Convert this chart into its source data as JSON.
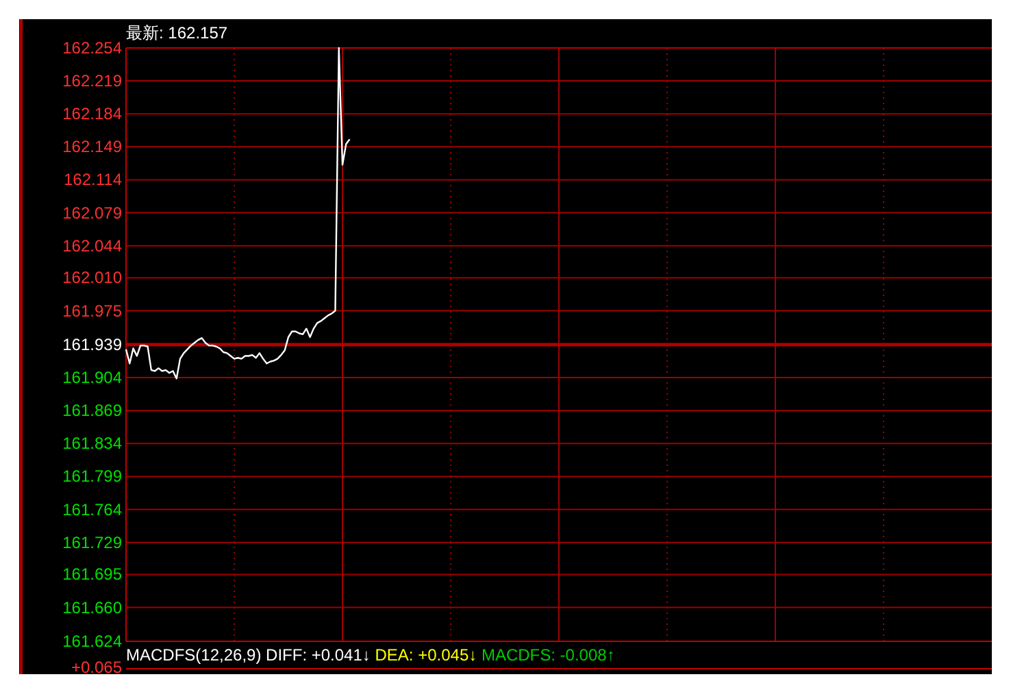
{
  "chart_data": {
    "type": "line",
    "title": "最新: 162.157",
    "categories": [
      null,
      null,
      null,
      null,
      null,
      null,
      null,
      null,
      null,
      null,
      null,
      null,
      null,
      null,
      null,
      null,
      null,
      null,
      null,
      null,
      null,
      null,
      null,
      null,
      null,
      null,
      null,
      null,
      null,
      null,
      null,
      null,
      null,
      null,
      null,
      null,
      null,
      null,
      null,
      null,
      null,
      null,
      null,
      null,
      null,
      null,
      null,
      null,
      null,
      null,
      null,
      null,
      null,
      null,
      null,
      null,
      null,
      null,
      null,
      null,
      null,
      null,
      null,
      null,
      null,
      null,
      null,
      null,
      null,
      null,
      null,
      null,
      null,
      null,
      null,
      null,
      null,
      null,
      null,
      null,
      null,
      null,
      null,
      null,
      null,
      null,
      null,
      null,
      null,
      null,
      null,
      null,
      null,
      null,
      null,
      null,
      null,
      null,
      null,
      null,
      null,
      null,
      null,
      null,
      null,
      null,
      null,
      null,
      null,
      null,
      null,
      null,
      null,
      null,
      null,
      null,
      null,
      null,
      null,
      null,
      null,
      null,
      null,
      null,
      null,
      null,
      null,
      null,
      null,
      null,
      null,
      null,
      null,
      null,
      null,
      null,
      null,
      null,
      null,
      null,
      null,
      null,
      null,
      null,
      null,
      null,
      null,
      null,
      null,
      null,
      null,
      null,
      null,
      null,
      null,
      null,
      null,
      null,
      null,
      null,
      null,
      null,
      null,
      null,
      null,
      null,
      null,
      null,
      null,
      null,
      null,
      null,
      null,
      null,
      null,
      null,
      null,
      null,
      null,
      null,
      null,
      null,
      null,
      null,
      null,
      null,
      null,
      null,
      null,
      null,
      null,
      null,
      null,
      null,
      null,
      null,
      null,
      null,
      null,
      null,
      null,
      null,
      null,
      null,
      null,
      null,
      null,
      null,
      null,
      null,
      null,
      null,
      null,
      null,
      null,
      null,
      null,
      null,
      null,
      null,
      null,
      null,
      null,
      null,
      null,
      null,
      null,
      null,
      null,
      null,
      null,
      null,
      null,
      null,
      null,
      null,
      null,
      null,
      null,
      null,
      null
    ],
    "series": [
      {
        "color": "#ffffff",
        "values": [
          161.934,
          161.919,
          161.935,
          161.927,
          161.938,
          161.938,
          161.937,
          161.912,
          161.911,
          161.914,
          161.911,
          161.912,
          161.909,
          161.911,
          161.903,
          161.924,
          161.93,
          161.934,
          161.938,
          161.941,
          161.944,
          161.946,
          161.941,
          161.938,
          161.938,
          161.937,
          161.935,
          161.931,
          161.93,
          161.927,
          161.924,
          161.925,
          161.924,
          161.927,
          161.927,
          161.928,
          161.925,
          161.93,
          161.924,
          161.919,
          161.921,
          161.922,
          161.924,
          161.928,
          161.933,
          161.947,
          161.953,
          161.953,
          161.951,
          161.95,
          161.956,
          161.947,
          161.956,
          161.962,
          161.964,
          161.967,
          161.97,
          161.972,
          161.975,
          162.254,
          162.13,
          162.152,
          162.157,
          null,
          null,
          null,
          null,
          null,
          null,
          null,
          null,
          null,
          null,
          null,
          null,
          null,
          null,
          null,
          null,
          null,
          null,
          null,
          null,
          null,
          null,
          null,
          null,
          null,
          null,
          null,
          null,
          null,
          null,
          null,
          null,
          null,
          null,
          null,
          null,
          null,
          null,
          null,
          null,
          null,
          null,
          null,
          null,
          null,
          null,
          null,
          null,
          null,
          null,
          null,
          null,
          null,
          null,
          null,
          null,
          null,
          null,
          null,
          null,
          null,
          null,
          null,
          null,
          null,
          null,
          null,
          null,
          null,
          null,
          null,
          null,
          null,
          null,
          null,
          null,
          null,
          null,
          null,
          null,
          null,
          null,
          null,
          null,
          null,
          null,
          null,
          null,
          null,
          null,
          null,
          null,
          null,
          null,
          null,
          null,
          null,
          null,
          null,
          null,
          null,
          null,
          null,
          null,
          null,
          null,
          null,
          null,
          null,
          null,
          null,
          null,
          null,
          null,
          null,
          null,
          null,
          null,
          null,
          null,
          null,
          null,
          null,
          null,
          null,
          null,
          null,
          null,
          null,
          null,
          null,
          null,
          null,
          null,
          null,
          null,
          null,
          null,
          null,
          null,
          null,
          null,
          null,
          null,
          null,
          null,
          null,
          null,
          null,
          null,
          null,
          null,
          null,
          null,
          null,
          null,
          null,
          null,
          null,
          null,
          null,
          null,
          null,
          null,
          null,
          null,
          null,
          null,
          null,
          null,
          null,
          null,
          null,
          null,
          null,
          null,
          null,
          null
        ]
      }
    ],
    "ylim": [
      161.624,
      162.254
    ],
    "yticks": [
      162.254,
      162.219,
      162.184,
      162.149,
      162.114,
      162.079,
      162.044,
      {
        "value": 162.01,
        "label": "162.010"
      },
      {
        "value": 161.975,
        "label": "161.975"
      },
      161.939,
      161.904,
      161.869,
      161.834,
      161.799,
      161.764,
      161.729,
      161.695,
      {
        "value": 161.66,
        "label": "161.660"
      },
      161.624
    ],
    "grid": true,
    "ref_lines": [
      {
        "axis": "y",
        "value": 161.939,
        "color": "#b00000"
      }
    ],
    "annotations": [
      "MACDFS(12,26,9) DIFF: +0.041↓",
      "DEA: +0.045↓",
      "MACDFS: -0.008↑",
      "+0.065"
    ]
  }
}
